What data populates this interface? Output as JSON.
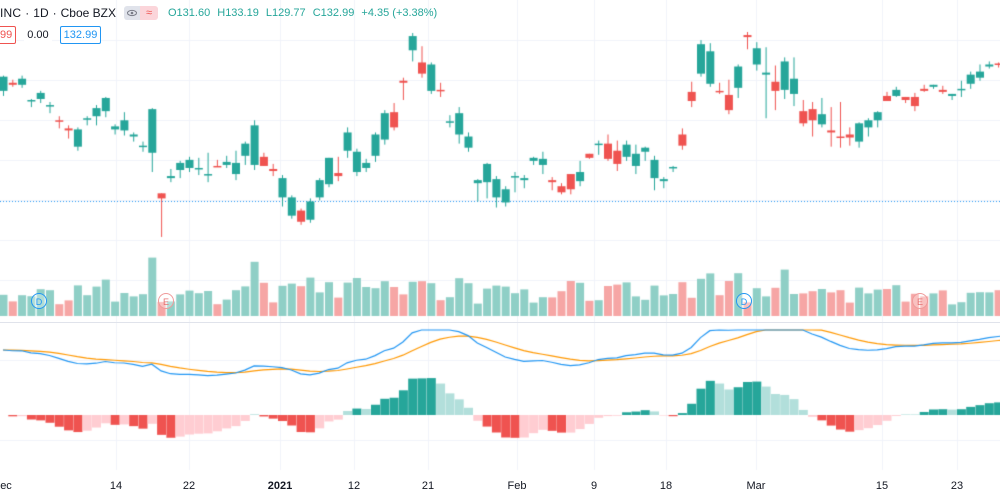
{
  "header": {
    "symbol": "INC",
    "interval": "1D",
    "exchange": "Cboe BZX",
    "ohlc": {
      "o": "O131.60",
      "h": "H133.19",
      "l": "L129.77",
      "c": "C132.99",
      "chg": "+4.35 (+3.38%)"
    },
    "badge_icon": "eye-icon",
    "badge2": "≈",
    "row2": {
      "left": "99",
      "mid": "0.00",
      "right": "132.99"
    }
  },
  "colors": {
    "up": "#26a69a",
    "down": "#ef5350",
    "vol_up": "#8fcfc6",
    "vol_down": "#f6a6a5",
    "macd": "#2196f3",
    "signal": "#ff9800",
    "hist_up_strong": "#26a69a",
    "hist_up_weak": "#b2dfdb",
    "hist_down_strong": "#ef5350",
    "hist_down_weak": "#ffcdd2"
  },
  "xaxis": {
    "labels": [
      "ec",
      "14",
      "22",
      "2021",
      "12",
      "21",
      "Feb",
      "9",
      "18",
      "Mar",
      "15",
      "23"
    ],
    "bold": [
      "2021"
    ]
  },
  "events": [
    {
      "letter": "D",
      "kind": "d"
    },
    {
      "letter": "E",
      "kind": "e"
    },
    {
      "letter": "D",
      "kind": "d"
    },
    {
      "letter": "E",
      "kind": "e"
    }
  ],
  "chart_data": {
    "type": "candlestick",
    "note": "",
    "candles": [
      [
        172,
        167,
        187,
        186
      ],
      [
        180,
        176,
        183,
        178
      ],
      [
        178,
        175,
        187,
        184
      ],
      [
        162,
        156,
        164,
        163
      ],
      [
        164,
        160,
        172,
        170
      ],
      [
        157,
        150,
        161,
        158
      ],
      [
        143,
        135,
        147,
        142
      ],
      [
        135,
        125,
        138,
        133
      ],
      [
        117,
        113,
        136,
        134
      ],
      [
        144,
        138,
        147,
        145
      ],
      [
        147,
        138,
        158,
        155
      ],
      [
        152,
        146,
        166,
        165
      ],
      [
        134,
        129,
        139,
        137
      ],
      [
        133,
        128,
        151,
        143
      ],
      [
        127,
        122,
        131,
        129
      ],
      [
        117,
        112,
        122,
        118
      ],
      [
        111,
        92,
        155,
        154
      ],
      [
        71,
        28,
        71,
        66
      ],
      [
        86,
        82,
        95,
        88
      ],
      [
        94,
        86,
        103,
        101
      ],
      [
        96,
        92,
        107,
        104
      ],
      [
        95,
        89,
        106,
        96
      ],
      [
        90,
        82,
        111,
        90
      ],
      [
        98,
        97,
        104,
        97
      ],
      [
        99,
        96,
        108,
        102
      ],
      [
        90,
        84,
        113,
        101
      ],
      [
        108,
        99,
        122,
        120
      ],
      [
        99,
        94,
        143,
        138
      ],
      [
        107,
        98,
        111,
        98
      ],
      [
        95,
        88,
        100,
        93
      ],
      [
        67,
        58,
        89,
        86
      ],
      [
        49,
        46,
        69,
        67
      ],
      [
        54,
        40,
        56,
        43
      ],
      [
        45,
        42,
        66,
        63
      ],
      [
        67,
        64,
        86,
        84
      ],
      [
        80,
        77,
        106,
        106
      ],
      [
        91,
        83,
        107,
        88
      ],
      [
        113,
        106,
        136,
        131
      ],
      [
        92,
        88,
        115,
        112
      ],
      [
        96,
        92,
        105,
        101
      ],
      [
        108,
        102,
        131,
        129
      ],
      [
        124,
        119,
        153,
        150
      ],
      [
        151,
        133,
        160,
        136
      ],
      [
        182,
        163,
        185,
        180
      ],
      [
        212,
        201,
        229,
        226
      ],
      [
        200,
        185,
        216,
        189
      ],
      [
        172,
        169,
        200,
        198
      ],
      [
        173,
        166,
        180,
        172
      ],
      [
        141,
        136,
        148,
        142
      ],
      [
        129,
        120,
        156,
        150
      ],
      [
        116,
        112,
        131,
        127
      ],
      [
        81,
        63,
        85,
        84
      ],
      [
        82,
        66,
        101,
        100
      ],
      [
        67,
        57,
        88,
        85
      ],
      [
        62,
        58,
        78,
        75
      ],
      [
        87,
        72,
        92,
        88
      ],
      [
        84,
        76,
        89,
        86
      ],
      [
        103,
        99,
        107,
        106
      ],
      [
        99,
        90,
        112,
        105
      ],
      [
        84,
        74,
        87,
        82
      ],
      [
        78,
        70,
        81,
        72
      ],
      [
        90,
        70,
        90,
        75
      ],
      [
        83,
        78,
        103,
        92
      ],
      [
        110,
        105,
        110,
        106
      ],
      [
        119,
        109,
        123,
        120
      ],
      [
        120,
        103,
        129,
        105
      ],
      [
        113,
        93,
        123,
        100
      ],
      [
        107,
        103,
        123,
        119
      ],
      [
        98,
        90,
        119,
        110
      ],
      [
        112,
        103,
        117,
        116
      ],
      [
        86,
        74,
        108,
        104
      ],
      [
        83,
        76,
        87,
        85
      ],
      [
        97,
        92,
        98,
        97
      ],
      [
        129,
        114,
        135,
        118
      ],
      [
        171,
        156,
        181,
        162
      ],
      [
        189,
        186,
        222,
        218
      ],
      [
        179,
        176,
        219,
        211
      ],
      [
        172,
        169,
        180,
        171
      ],
      [
        168,
        149,
        183,
        153
      ],
      [
        175,
        165,
        198,
        196
      ],
      [
        227,
        213,
        230,
        225
      ],
      [
        198,
        192,
        220,
        214
      ],
      [
        188,
        145,
        215,
        190
      ],
      [
        181,
        153,
        197,
        172
      ],
      [
        173,
        164,
        205,
        201
      ],
      [
        169,
        157,
        205,
        184
      ],
      [
        152,
        137,
        163,
        140
      ],
      [
        154,
        127,
        161,
        143
      ],
      [
        139,
        136,
        165,
        149
      ],
      [
        133,
        117,
        156,
        131
      ],
      [
        127,
        116,
        161,
        126
      ],
      [
        129,
        118,
        136,
        126
      ],
      [
        122,
        116,
        141,
        140
      ],
      [
        136,
        127,
        145,
        143
      ],
      [
        143,
        136,
        152,
        151
      ],
      [
        167,
        162,
        171,
        162
      ],
      [
        167,
        166,
        176,
        173
      ],
      [
        166,
        160,
        166,
        163
      ],
      [
        166,
        152,
        170,
        157
      ],
      [
        174,
        171,
        178,
        172
      ],
      [
        176,
        174,
        178,
        178
      ],
      [
        173,
        169,
        177,
        171
      ],
      [
        167,
        163,
        169,
        169
      ],
      [
        173,
        166,
        182,
        174
      ],
      [
        179,
        174,
        191,
        188
      ],
      [
        185,
        182,
        198,
        191
      ],
      [
        196,
        194,
        201,
        198
      ],
      [
        199,
        195,
        200,
        198
      ],
      [
        205,
        200,
        205,
        202
      ]
    ]
  }
}
